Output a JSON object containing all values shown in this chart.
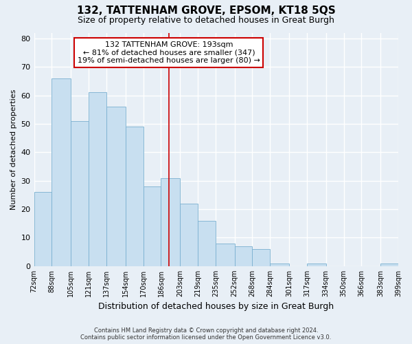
{
  "title": "132, TATTENHAM GROVE, EPSOM, KT18 5QS",
  "subtitle": "Size of property relative to detached houses in Great Burgh",
  "xlabel": "Distribution of detached houses by size in Great Burgh",
  "ylabel": "Number of detached properties",
  "footer_line1": "Contains HM Land Registry data © Crown copyright and database right 2024.",
  "footer_line2": "Contains public sector information licensed under the Open Government Licence v3.0.",
  "bin_labels": [
    "72sqm",
    "88sqm",
    "105sqm",
    "121sqm",
    "137sqm",
    "154sqm",
    "170sqm",
    "186sqm",
    "203sqm",
    "219sqm",
    "235sqm",
    "252sqm",
    "268sqm",
    "284sqm",
    "301sqm",
    "317sqm",
    "334sqm",
    "350sqm",
    "366sqm",
    "383sqm",
    "399sqm"
  ],
  "bar_heights": [
    26,
    66,
    51,
    61,
    56,
    49,
    28,
    31,
    22,
    16,
    8,
    7,
    6,
    1,
    0,
    1,
    0,
    0,
    0,
    1
  ],
  "bar_color": "#c8dff0",
  "bar_edge_color": "#7ab0d0",
  "property_line_color": "#cc0000",
  "annotation_box_edge_color": "#cc0000",
  "annotation_box_face_color": "#ffffff",
  "property_line_label": "132 TATTENHAM GROVE: 193sqm",
  "annotation_line1": "← 81% of detached houses are smaller (347)",
  "annotation_line2": "19% of semi-detached houses are larger (80) →",
  "ylim": [
    0,
    82
  ],
  "bin_edges": [
    72,
    88,
    105,
    121,
    137,
    154,
    170,
    186,
    203,
    219,
    235,
    252,
    268,
    284,
    301,
    317,
    334,
    350,
    366,
    383,
    399
  ],
  "property_line_x": 193,
  "background_color": "#e8eff6",
  "grid_color": "#ffffff",
  "title_fontsize": 11,
  "subtitle_fontsize": 9,
  "ylabel_fontsize": 8,
  "xlabel_fontsize": 9,
  "tick_fontsize": 7,
  "annotation_fontsize": 8,
  "footer_fontsize": 6
}
